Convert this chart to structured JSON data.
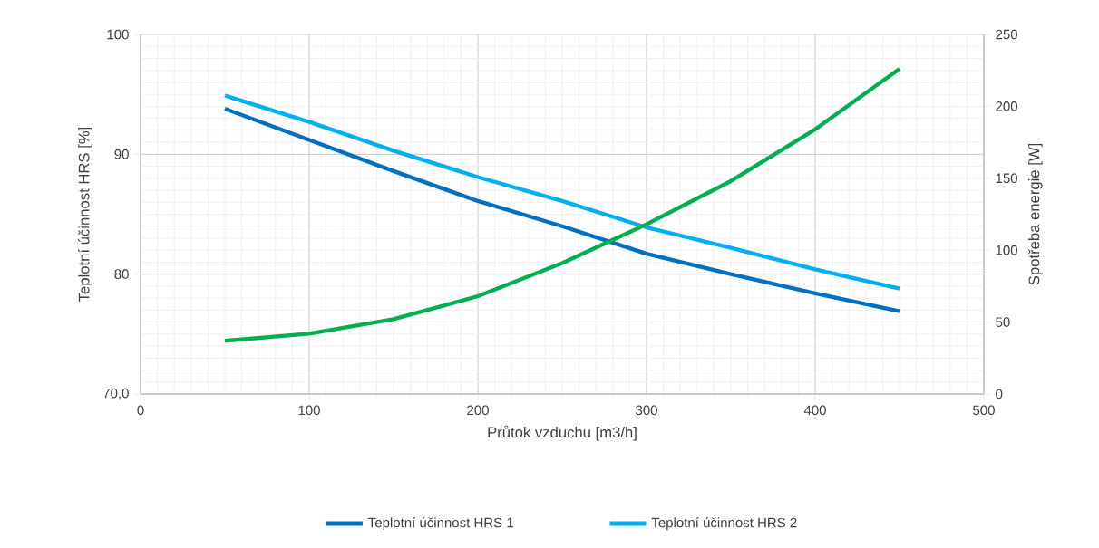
{
  "chart_data": {
    "type": "line",
    "xlabel": "Průtok vzduchu [m3/h]",
    "ylabel": "Teplotní účinnost HRS [%]",
    "y2label": "Spotřeba energie [W]",
    "x": [
      50,
      100,
      150,
      200,
      250,
      300,
      350,
      400,
      450
    ],
    "series": [
      {
        "name": "Teplotní účinnost HRS 1",
        "color": "#0070c0",
        "values": [
          93.8,
          91.2,
          88.6,
          86.1,
          84.0,
          81.7,
          80.0,
          78.4,
          76.9
        ]
      },
      {
        "name": "Teplotní účinnost HRS 2",
        "color": "#00b0f0",
        "values": [
          94.9,
          92.7,
          90.3,
          88.1,
          86.1,
          83.9,
          82.2,
          80.4,
          78.8
        ]
      },
      {
        "color": "#00b050",
        "axis": "y2",
        "values": [
          37,
          42,
          52,
          68,
          91,
          118,
          148,
          184,
          226
        ]
      }
    ],
    "xlim": [
      0,
      500
    ],
    "xticks": [
      0,
      100,
      200,
      300,
      400,
      500
    ],
    "ylim": [
      70,
      100
    ],
    "yticks": [
      {
        "value": 70,
        "label": "70,0"
      },
      80,
      90,
      100
    ],
    "y2lim": [
      0,
      250
    ],
    "y2ticks": [
      0,
      50,
      100,
      150,
      200,
      250
    ],
    "grid": true,
    "legend": "bottom"
  }
}
